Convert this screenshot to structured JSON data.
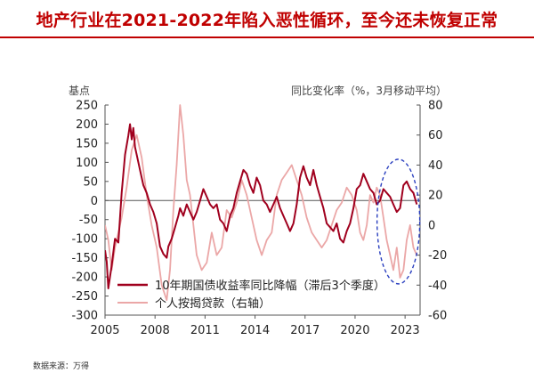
{
  "title": "地产行业在2021-2022年陷入恶性循环，至今还未恢复正常",
  "source": "数据来源：万得",
  "chart_data": {
    "type": "line",
    "left_axis_label": "基点",
    "right_axis_label": "同比变化率（%，3月移动平均）",
    "left_ylim": [
      -300,
      250
    ],
    "left_ticks": [
      250,
      200,
      150,
      100,
      50,
      0,
      -50,
      -100,
      -150,
      -200,
      -250,
      -300
    ],
    "right_ylim": [
      -60,
      80
    ],
    "right_ticks": [
      80,
      60,
      40,
      20,
      0,
      -20,
      -40,
      -60
    ],
    "x_ticks": [
      "2005",
      "2008",
      "2011",
      "2014",
      "2017",
      "2020",
      "2023"
    ],
    "xlim": [
      2005,
      2023.9
    ],
    "grid": false,
    "legend_position": "bottom-left",
    "series": [
      {
        "name": "10年期国债收益率同比降幅（滞后3个季度）",
        "axis": "left",
        "color": "#a0001e",
        "x": [
          2005.0,
          2005.1,
          2005.2,
          2005.3,
          2005.4,
          2005.6,
          2005.8,
          2006.0,
          2006.2,
          2006.4,
          2006.5,
          2006.6,
          2006.7,
          2006.8,
          2006.9,
          2007.1,
          2007.3,
          2007.5,
          2007.7,
          2007.9,
          2008.1,
          2008.3,
          2008.5,
          2008.7,
          2008.8,
          2009.0,
          2009.2,
          2009.4,
          2009.5,
          2009.7,
          2009.9,
          2010.1,
          2010.3,
          2010.5,
          2010.7,
          2010.9,
          2011.1,
          2011.3,
          2011.5,
          2011.7,
          2011.9,
          2012.1,
          2012.3,
          2012.5,
          2012.7,
          2012.9,
          2013.1,
          2013.3,
          2013.5,
          2013.7,
          2013.9,
          2014.1,
          2014.3,
          2014.5,
          2014.7,
          2014.9,
          2015.1,
          2015.3,
          2015.5,
          2015.7,
          2015.9,
          2016.1,
          2016.3,
          2016.5,
          2016.7,
          2016.9,
          2017.1,
          2017.3,
          2017.5,
          2017.7,
          2017.9,
          2018.1,
          2018.3,
          2018.5,
          2018.7,
          2018.9,
          2019.1,
          2019.3,
          2019.5,
          2019.7,
          2019.9,
          2020.1,
          2020.3,
          2020.5,
          2020.7,
          2020.9,
          2021.1,
          2021.3,
          2021.5,
          2021.7,
          2021.9,
          2022.1,
          2022.3,
          2022.5,
          2022.7,
          2022.9,
          2023.1,
          2023.3,
          2023.5,
          2023.7
        ],
        "values": [
          -130,
          -160,
          -230,
          -200,
          -170,
          -100,
          -110,
          20,
          120,
          170,
          200,
          160,
          190,
          140,
          120,
          80,
          40,
          20,
          -10,
          -30,
          -60,
          -120,
          -140,
          -150,
          -120,
          -100,
          -70,
          -40,
          -20,
          -40,
          -10,
          -30,
          -50,
          -30,
          0,
          30,
          10,
          -10,
          -20,
          -10,
          -50,
          -60,
          -80,
          -40,
          -20,
          20,
          50,
          80,
          70,
          40,
          20,
          60,
          40,
          0,
          -10,
          -30,
          -10,
          10,
          -20,
          -40,
          -60,
          -80,
          -60,
          -10,
          60,
          90,
          60,
          40,
          80,
          40,
          10,
          -20,
          -60,
          -70,
          -80,
          -60,
          -100,
          -110,
          -80,
          -60,
          -20,
          30,
          40,
          70,
          50,
          30,
          20,
          -10,
          0,
          30,
          20,
          10,
          -10,
          -30,
          -20,
          40,
          50,
          30,
          20,
          -10
        ]
      },
      {
        "name": "个人按揭贷款（右轴）",
        "axis": "right",
        "color": "#eba7a7",
        "x": [
          2005.0,
          2005.2,
          2005.4,
          2005.6,
          2005.8,
          2006.0,
          2006.3,
          2006.6,
          2006.9,
          2007.2,
          2007.5,
          2007.8,
          2008.1,
          2008.4,
          2008.7,
          2008.9,
          2009.1,
          2009.3,
          2009.5,
          2009.7,
          2009.9,
          2010.1,
          2010.3,
          2010.5,
          2010.8,
          2011.1,
          2011.4,
          2011.7,
          2012.0,
          2012.3,
          2012.6,
          2012.9,
          2013.2,
          2013.5,
          2013.8,
          2014.1,
          2014.4,
          2014.7,
          2015.0,
          2015.3,
          2015.6,
          2015.9,
          2016.2,
          2016.5,
          2016.8,
          2017.1,
          2017.4,
          2017.7,
          2018.0,
          2018.3,
          2018.6,
          2018.9,
          2019.2,
          2019.5,
          2019.8,
          2020.1,
          2020.3,
          2020.5,
          2020.7,
          2020.9,
          2021.1,
          2021.3,
          2021.5,
          2021.7,
          2021.9,
          2022.1,
          2022.3,
          2022.5,
          2022.7,
          2022.9,
          2023.1,
          2023.3,
          2023.5,
          2023.7
        ],
        "values": [
          0,
          -10,
          -30,
          -15,
          -5,
          5,
          25,
          50,
          60,
          45,
          20,
          0,
          -15,
          -40,
          -50,
          -30,
          10,
          40,
          80,
          60,
          30,
          20,
          0,
          -20,
          -30,
          -25,
          -5,
          -20,
          -15,
          10,
          5,
          15,
          30,
          20,
          5,
          -10,
          -20,
          -10,
          -5,
          20,
          30,
          35,
          40,
          30,
          20,
          5,
          -5,
          -10,
          -15,
          -10,
          0,
          10,
          15,
          25,
          20,
          10,
          -5,
          -10,
          0,
          20,
          15,
          25,
          20,
          5,
          -10,
          -20,
          -30,
          -15,
          -35,
          -30,
          -10,
          0,
          -15,
          -20
        ]
      }
    ]
  }
}
